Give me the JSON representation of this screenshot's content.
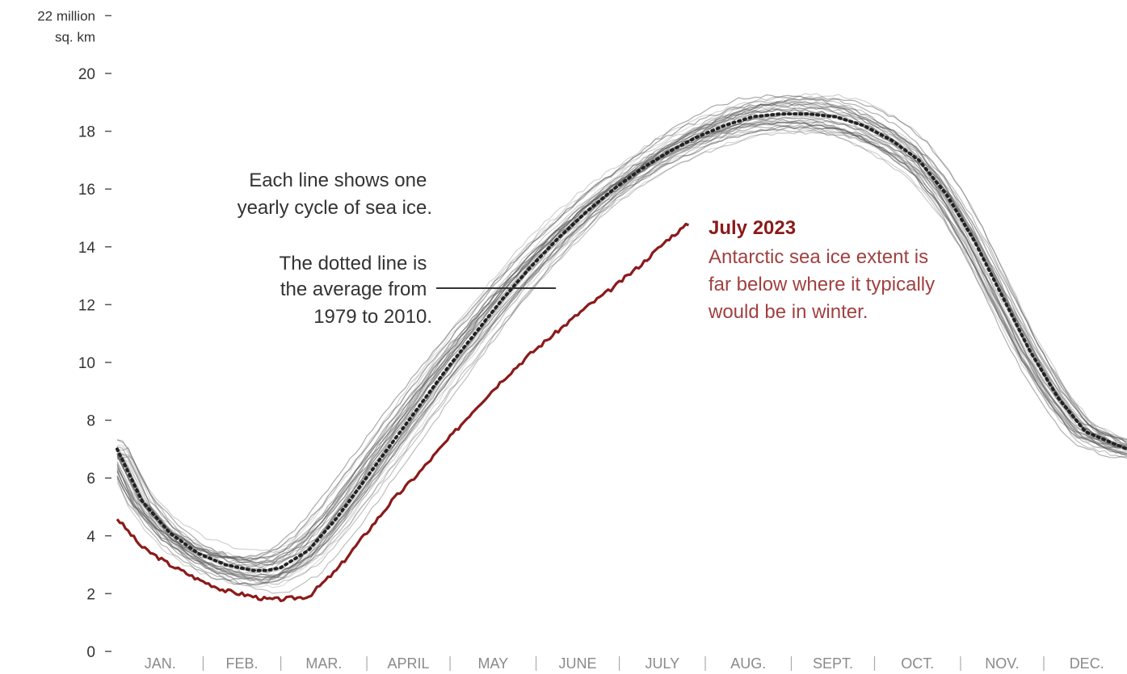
{
  "colors": {
    "highlight": "#8b1a1a",
    "highlight_text": "#a04040",
    "history_lines": "#555555",
    "average": "#222222",
    "text": "#333333",
    "month_text": "#8a8a8a"
  },
  "chart_data": {
    "type": "line",
    "title": "",
    "xlabel": "",
    "ylabel": "22 million sq. km",
    "ylabel_lines": [
      "22 million",
      "sq. km"
    ],
    "ylim": [
      0,
      22
    ],
    "yticks": [
      "0",
      "2",
      "4",
      "6",
      "8",
      "10",
      "12",
      "14",
      "16",
      "18",
      "20"
    ],
    "months": [
      "JAN.",
      "FEB.",
      "MAR.",
      "APRIL",
      "MAY",
      "JUNE",
      "JULY",
      "AUG.",
      "SEPT.",
      "OCT.",
      "NOV.",
      "DEC."
    ],
    "x_unit": "day of year",
    "xlim": [
      1,
      365
    ],
    "grid": false,
    "legend": "none",
    "series": [
      {
        "name": "July 2023",
        "style": "solid-dark-red",
        "x": [
          1,
          10,
          20,
          30,
          40,
          50,
          55,
          60,
          70,
          80,
          90,
          100,
          110,
          120,
          130,
          140,
          150,
          160,
          170,
          180,
          190,
          200,
          207
        ],
        "y": [
          4.6,
          3.6,
          3.0,
          2.5,
          2.1,
          1.9,
          1.8,
          1.8,
          1.9,
          2.8,
          4.0,
          5.2,
          6.2,
          7.3,
          8.4,
          9.4,
          10.3,
          11.1,
          11.9,
          12.6,
          13.4,
          14.3,
          14.8
        ]
      },
      {
        "name": "1979 to 2010 average",
        "style": "dotted-black",
        "x": [
          1,
          10,
          20,
          30,
          40,
          50,
          55,
          60,
          70,
          80,
          90,
          100,
          110,
          120,
          130,
          140,
          150,
          160,
          170,
          180,
          190,
          200,
          210,
          220,
          230,
          240,
          250,
          260,
          270,
          280,
          290,
          300,
          310,
          320,
          330,
          340,
          350,
          365
        ],
        "y": [
          7.0,
          5.2,
          4.1,
          3.4,
          3.0,
          2.8,
          2.8,
          2.9,
          3.5,
          4.6,
          5.9,
          7.2,
          8.5,
          9.8,
          11.0,
          12.2,
          13.3,
          14.3,
          15.2,
          16.0,
          16.7,
          17.3,
          17.8,
          18.2,
          18.5,
          18.6,
          18.6,
          18.5,
          18.2,
          17.7,
          17.0,
          15.8,
          14.2,
          12.3,
          10.4,
          8.8,
          7.6,
          7.0
        ]
      }
    ],
    "annotations": [
      {
        "id": "lines_note",
        "lines": [
          "Each line shows one",
          "yearly cycle of sea ice."
        ]
      },
      {
        "id": "dotted_note",
        "lines": [
          "The dotted line is",
          "the average from",
          "1979 to 2010."
        ]
      },
      {
        "id": "july_note",
        "title": "July 2023",
        "lines": [
          "Antarctic sea ice extent is",
          "far below where it typically",
          "would be in winter."
        ]
      }
    ]
  }
}
